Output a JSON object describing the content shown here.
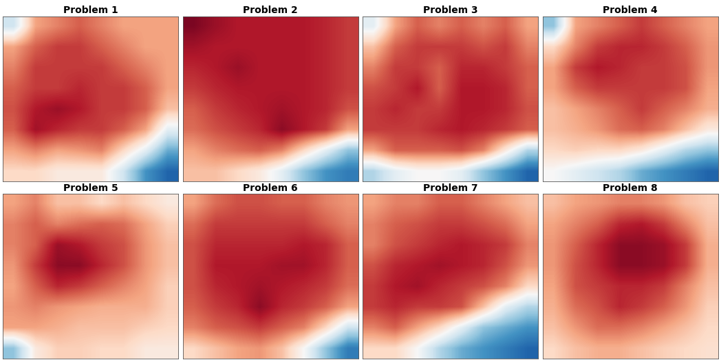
{
  "chart_data": [
    {
      "type": "heatmap",
      "title": "Problem 1",
      "tick_labels": false,
      "clim": [
        0,
        1
      ],
      "cells": [
        [
          0.4,
          0.7,
          0.75,
          0.8,
          0.75,
          0.7,
          0.7,
          0.7
        ],
        [
          0.7,
          0.8,
          0.85,
          0.85,
          0.8,
          0.75,
          0.7,
          0.7
        ],
        [
          0.75,
          0.85,
          0.85,
          0.85,
          0.85,
          0.8,
          0.75,
          0.7
        ],
        [
          0.8,
          0.85,
          0.85,
          0.88,
          0.85,
          0.85,
          0.8,
          0.7
        ],
        [
          0.82,
          0.9,
          0.93,
          0.9,
          0.85,
          0.85,
          0.8,
          0.65
        ],
        [
          0.8,
          0.92,
          0.88,
          0.85,
          0.85,
          0.8,
          0.7,
          0.45
        ],
        [
          0.7,
          0.75,
          0.7,
          0.72,
          0.75,
          0.6,
          0.45,
          0.25
        ],
        [
          0.6,
          0.6,
          0.55,
          0.55,
          0.55,
          0.4,
          0.2,
          0.1
        ]
      ]
    },
    {
      "type": "heatmap",
      "title": "Problem 2",
      "tick_labels": false,
      "clim": [
        0,
        1
      ],
      "cells": [
        [
          0.97,
          0.93,
          0.9,
          0.9,
          0.9,
          0.9,
          0.88,
          0.85
        ],
        [
          0.92,
          0.9,
          0.9,
          0.9,
          0.9,
          0.9,
          0.88,
          0.85
        ],
        [
          0.88,
          0.9,
          0.93,
          0.9,
          0.9,
          0.9,
          0.88,
          0.85
        ],
        [
          0.85,
          0.88,
          0.9,
          0.9,
          0.9,
          0.9,
          0.88,
          0.85
        ],
        [
          0.8,
          0.85,
          0.88,
          0.9,
          0.92,
          0.9,
          0.88,
          0.82
        ],
        [
          0.78,
          0.82,
          0.85,
          0.88,
          0.95,
          0.9,
          0.85,
          0.7
        ],
        [
          0.7,
          0.75,
          0.78,
          0.8,
          0.75,
          0.6,
          0.45,
          0.3
        ],
        [
          0.65,
          0.65,
          0.6,
          0.55,
          0.45,
          0.3,
          0.2,
          0.15
        ]
      ]
    },
    {
      "type": "heatmap",
      "title": "Problem 3",
      "tick_labels": false,
      "clim": [
        0,
        1
      ],
      "cells": [
        [
          0.45,
          0.7,
          0.8,
          0.75,
          0.8,
          0.75,
          0.8,
          0.7
        ],
        [
          0.65,
          0.8,
          0.85,
          0.85,
          0.85,
          0.82,
          0.85,
          0.75
        ],
        [
          0.75,
          0.85,
          0.85,
          0.8,
          0.88,
          0.88,
          0.85,
          0.8
        ],
        [
          0.82,
          0.85,
          0.9,
          0.8,
          0.9,
          0.9,
          0.88,
          0.8
        ],
        [
          0.85,
          0.88,
          0.85,
          0.85,
          0.9,
          0.9,
          0.88,
          0.82
        ],
        [
          0.85,
          0.85,
          0.85,
          0.88,
          0.9,
          0.88,
          0.85,
          0.8
        ],
        [
          0.7,
          0.8,
          0.8,
          0.8,
          0.82,
          0.75,
          0.55,
          0.35
        ],
        [
          0.35,
          0.45,
          0.5,
          0.5,
          0.45,
          0.3,
          0.2,
          0.1
        ]
      ]
    },
    {
      "type": "heatmap",
      "title": "Problem 4",
      "tick_labels": false,
      "clim": [
        0,
        1
      ],
      "cells": [
        [
          0.3,
          0.7,
          0.75,
          0.8,
          0.85,
          0.8,
          0.75,
          0.7
        ],
        [
          0.6,
          0.75,
          0.85,
          0.88,
          0.88,
          0.85,
          0.8,
          0.72
        ],
        [
          0.7,
          0.85,
          0.9,
          0.88,
          0.85,
          0.85,
          0.82,
          0.72
        ],
        [
          0.7,
          0.8,
          0.85,
          0.85,
          0.85,
          0.85,
          0.82,
          0.7
        ],
        [
          0.65,
          0.7,
          0.75,
          0.8,
          0.85,
          0.8,
          0.75,
          0.68
        ],
        [
          0.65,
          0.68,
          0.72,
          0.78,
          0.8,
          0.75,
          0.65,
          0.55
        ],
        [
          0.6,
          0.62,
          0.6,
          0.6,
          0.55,
          0.45,
          0.35,
          0.3
        ],
        [
          0.5,
          0.45,
          0.4,
          0.35,
          0.25,
          0.2,
          0.15,
          0.1
        ]
      ]
    },
    {
      "type": "heatmap",
      "title": "Problem 5",
      "tick_labels": false,
      "clim": [
        0,
        1
      ],
      "cells": [
        [
          0.7,
          0.75,
          0.65,
          0.65,
          0.6,
          0.65,
          0.6,
          0.55
        ],
        [
          0.75,
          0.8,
          0.75,
          0.78,
          0.8,
          0.78,
          0.7,
          0.62
        ],
        [
          0.75,
          0.8,
          0.93,
          0.9,
          0.85,
          0.82,
          0.72,
          0.65
        ],
        [
          0.72,
          0.85,
          0.95,
          0.95,
          0.88,
          0.82,
          0.72,
          0.65
        ],
        [
          0.7,
          0.8,
          0.88,
          0.85,
          0.8,
          0.75,
          0.7,
          0.62
        ],
        [
          0.72,
          0.75,
          0.72,
          0.7,
          0.68,
          0.68,
          0.68,
          0.62
        ],
        [
          0.7,
          0.7,
          0.68,
          0.65,
          0.65,
          0.65,
          0.62,
          0.6
        ],
        [
          0.3,
          0.55,
          0.62,
          0.62,
          0.6,
          0.6,
          0.55,
          0.55
        ]
      ]
    },
    {
      "type": "heatmap",
      "title": "Problem 6",
      "tick_labels": false,
      "clim": [
        0,
        1
      ],
      "cells": [
        [
          0.7,
          0.78,
          0.82,
          0.82,
          0.8,
          0.8,
          0.75,
          0.72
        ],
        [
          0.78,
          0.85,
          0.85,
          0.85,
          0.85,
          0.85,
          0.8,
          0.75
        ],
        [
          0.82,
          0.88,
          0.88,
          0.88,
          0.88,
          0.9,
          0.88,
          0.8
        ],
        [
          0.82,
          0.9,
          0.9,
          0.9,
          0.92,
          0.92,
          0.88,
          0.8
        ],
        [
          0.82,
          0.88,
          0.9,
          0.92,
          0.9,
          0.88,
          0.85,
          0.78
        ],
        [
          0.8,
          0.85,
          0.88,
          0.95,
          0.88,
          0.85,
          0.8,
          0.7
        ],
        [
          0.75,
          0.8,
          0.82,
          0.85,
          0.8,
          0.75,
          0.6,
          0.4
        ],
        [
          0.6,
          0.65,
          0.7,
          0.72,
          0.65,
          0.5,
          0.3,
          0.15
        ]
      ]
    },
    {
      "type": "heatmap",
      "title": "Problem 7",
      "tick_labels": false,
      "clim": [
        0,
        1
      ],
      "cells": [
        [
          0.7,
          0.75,
          0.75,
          0.8,
          0.8,
          0.75,
          0.7,
          0.65
        ],
        [
          0.75,
          0.8,
          0.82,
          0.85,
          0.85,
          0.82,
          0.78,
          0.7
        ],
        [
          0.75,
          0.82,
          0.85,
          0.88,
          0.9,
          0.88,
          0.85,
          0.75
        ],
        [
          0.82,
          0.88,
          0.9,
          0.92,
          0.9,
          0.88,
          0.82,
          0.72
        ],
        [
          0.85,
          0.9,
          0.92,
          0.88,
          0.85,
          0.82,
          0.75,
          0.6
        ],
        [
          0.85,
          0.88,
          0.85,
          0.85,
          0.82,
          0.65,
          0.45,
          0.35
        ],
        [
          0.75,
          0.8,
          0.7,
          0.6,
          0.45,
          0.3,
          0.25,
          0.2
        ],
        [
          0.6,
          0.6,
          0.5,
          0.35,
          0.25,
          0.2,
          0.15,
          0.1
        ]
      ]
    },
    {
      "type": "heatmap",
      "title": "Problem 8",
      "tick_labels": false,
      "clim": [
        0,
        1
      ],
      "cells": [
        [
          0.65,
          0.7,
          0.72,
          0.75,
          0.75,
          0.72,
          0.65,
          0.62
        ],
        [
          0.7,
          0.75,
          0.8,
          0.88,
          0.9,
          0.85,
          0.75,
          0.65
        ],
        [
          0.72,
          0.8,
          0.88,
          0.95,
          0.95,
          0.93,
          0.85,
          0.68
        ],
        [
          0.72,
          0.82,
          0.88,
          0.95,
          0.95,
          0.93,
          0.85,
          0.68
        ],
        [
          0.7,
          0.82,
          0.85,
          0.88,
          0.88,
          0.85,
          0.75,
          0.65
        ],
        [
          0.68,
          0.78,
          0.82,
          0.88,
          0.85,
          0.8,
          0.72,
          0.62
        ],
        [
          0.65,
          0.72,
          0.78,
          0.78,
          0.75,
          0.7,
          0.65,
          0.6
        ],
        [
          0.6,
          0.65,
          0.68,
          0.68,
          0.65,
          0.62,
          0.6,
          0.58
        ]
      ]
    }
  ]
}
